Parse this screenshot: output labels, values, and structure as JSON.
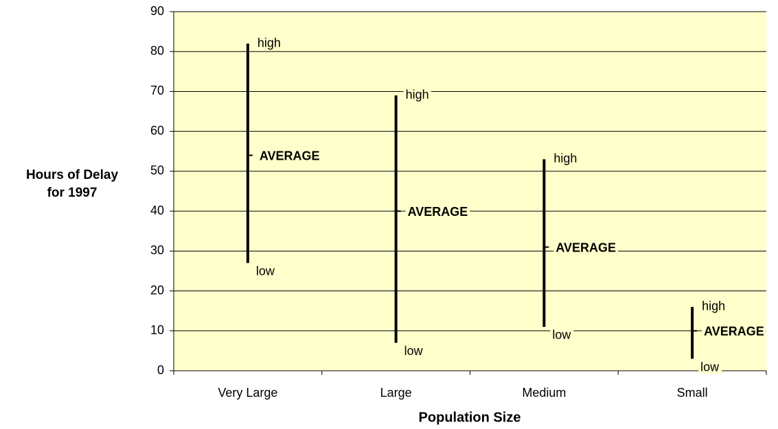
{
  "chart_data": {
    "type": "hilo",
    "x_label": "Population Size",
    "y_label": "Hours of Delay for 1997",
    "categories": [
      "Very Large",
      "Large",
      "Medium",
      "Small"
    ],
    "series": [
      {
        "name": "high",
        "values": [
          82,
          69,
          53,
          16
        ]
      },
      {
        "name": "low",
        "values": [
          27,
          7,
          11,
          3
        ]
      },
      {
        "name": "AVERAGE",
        "values": [
          54,
          40,
          31,
          10
        ]
      }
    ],
    "color": "#000000",
    "background": "#ffffcc",
    "ylim": [
      0,
      90
    ],
    "yticks": [
      0,
      10,
      20,
      30,
      40,
      50,
      60,
      70,
      80,
      90
    ],
    "grid": true
  }
}
